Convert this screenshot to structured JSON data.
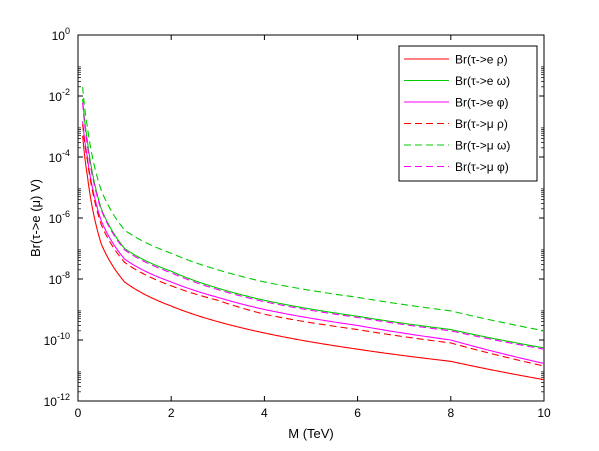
{
  "chart_data": {
    "type": "line",
    "title": "",
    "xlabel": "M (TeV)",
    "ylabel": "Br(τ->e (μ) V)",
    "xlim": [
      0,
      10
    ],
    "ylim_log10": [
      -12,
      0
    ],
    "y_scale": "log",
    "x_ticks": [
      "0",
      "2",
      "4",
      "6",
      "8",
      "10"
    ],
    "y_ticks": [
      {
        "base": "10",
        "exp": "-12"
      },
      {
        "base": "10",
        "exp": "-10"
      },
      {
        "base": "10",
        "exp": "-8"
      },
      {
        "base": "10",
        "exp": "-6"
      },
      {
        "base": "10",
        "exp": "-4"
      },
      {
        "base": "10",
        "exp": "-2"
      },
      {
        "base": "10",
        "exp": "0"
      }
    ],
    "legend_position": "top-right",
    "x": [
      0.1,
      0.2,
      0.5,
      1,
      2,
      3,
      4,
      6,
      8,
      10
    ],
    "series": [
      {
        "name": "Br(τ->e ρ)",
        "color": "#ff0000",
        "dash": "solid",
        "values": [
          0.0005,
          2.5e-05,
          1.4e-07,
          8e-09,
          1.3e-09,
          4e-10,
          1.7e-10,
          5e-11,
          2e-11,
          5e-12
        ]
      },
      {
        "name": "Br(τ->e ω)",
        "color": "#00cc00",
        "dash": "solid",
        "values": [
          0.008,
          0.00035,
          2e-06,
          1e-07,
          1.8e-08,
          5e-09,
          2e-09,
          6e-10,
          2.2e-10,
          5.5e-11
        ]
      },
      {
        "name": "Br(τ->e φ)",
        "color": "#ff00ff",
        "dash": "solid",
        "values": [
          0.0015,
          0.0001,
          8e-07,
          4.5e-08,
          8e-09,
          2.5e-09,
          1e-09,
          3e-10,
          1e-10,
          1.7e-11
        ]
      },
      {
        "name": "Br(τ->μ ρ)",
        "color": "#ff0000",
        "dash": "dashed",
        "values": [
          0.0012,
          8e-05,
          6e-07,
          3.5e-08,
          6e-09,
          2e-09,
          7e-10,
          2.2e-10,
          8e-11,
          1.4e-11
        ]
      },
      {
        "name": "Br(τ->μ ω)",
        "color": "#00cc00",
        "dash": "dashed",
        "values": [
          0.02,
          0.001,
          8e-06,
          4e-07,
          7e-08,
          2e-08,
          8e-09,
          2.5e-09,
          9e-10,
          2e-10
        ]
      },
      {
        "name": "Br(τ->μ φ)",
        "color": "#ff00ff",
        "dash": "dashed",
        "values": [
          0.006,
          0.00025,
          1.8e-06,
          9e-08,
          1.6e-08,
          4.5e-09,
          1.8e-09,
          5.5e-10,
          2e-10,
          5e-11
        ]
      }
    ]
  }
}
